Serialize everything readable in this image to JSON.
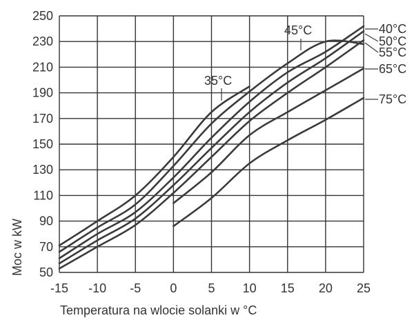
{
  "chart_data": {
    "type": "line",
    "title": "",
    "xlabel": "Temperatura na wlocie solanki w °C",
    "ylabel": "Moc w kW",
    "xlim": [
      -15,
      25
    ],
    "ylim": [
      50,
      250
    ],
    "x_ticks": [
      -15,
      -10,
      -5,
      0,
      5,
      10,
      15,
      20,
      25
    ],
    "y_ticks": [
      50,
      70,
      90,
      110,
      130,
      150,
      170,
      190,
      210,
      230,
      250
    ],
    "x_tick_labels": [
      "-15",
      "-10",
      "-5",
      "0",
      "5",
      "10",
      "15",
      "20",
      "25"
    ],
    "y_tick_labels": [
      "50",
      "70",
      "90",
      "110",
      "130",
      "150",
      "170",
      "190",
      "210",
      "230",
      "250"
    ],
    "grid": true,
    "legend": "none",
    "line_color": "#3a3a3a",
    "grid_color": "#333333",
    "series": [
      {
        "name": "35°C",
        "x": [
          -15,
          -10,
          -5,
          0,
          5,
          10
        ],
        "y": [
          71,
          90,
          110,
          140,
          175,
          195
        ]
      },
      {
        "name": "45°C",
        "x": [
          -15,
          -10,
          -5,
          0,
          5,
          10,
          15,
          20,
          25
        ],
        "y": [
          66,
          85,
          103,
          133,
          166,
          191,
          213,
          230,
          228
        ]
      },
      {
        "name": "40°C",
        "x": [
          -15,
          -10,
          -5,
          0,
          5,
          10,
          15,
          20,
          25
        ],
        "y": [
          61,
          80,
          97,
          124,
          155,
          183,
          206,
          222,
          242
        ]
      },
      {
        "name": "50°C",
        "x": [
          -15,
          -10,
          -5,
          0,
          5,
          10,
          15,
          20,
          25
        ],
        "y": [
          57,
          75,
          92,
          118,
          147,
          175,
          198,
          217,
          238
        ]
      },
      {
        "name": "55°C",
        "x": [
          -15,
          -10,
          -5,
          0,
          5,
          10,
          15,
          20,
          25
        ],
        "y": [
          53,
          70,
          87,
          112,
          140,
          168,
          190,
          210,
          231
        ]
      },
      {
        "name": "65°C",
        "x": [
          0,
          5,
          10,
          15,
          20,
          25
        ],
        "y": [
          104,
          128,
          157,
          175,
          192,
          209
        ]
      },
      {
        "name": "75°C",
        "x": [
          0,
          5,
          10,
          15,
          20,
          25
        ],
        "y": [
          86,
          108,
          135,
          153,
          169,
          186
        ]
      }
    ]
  }
}
